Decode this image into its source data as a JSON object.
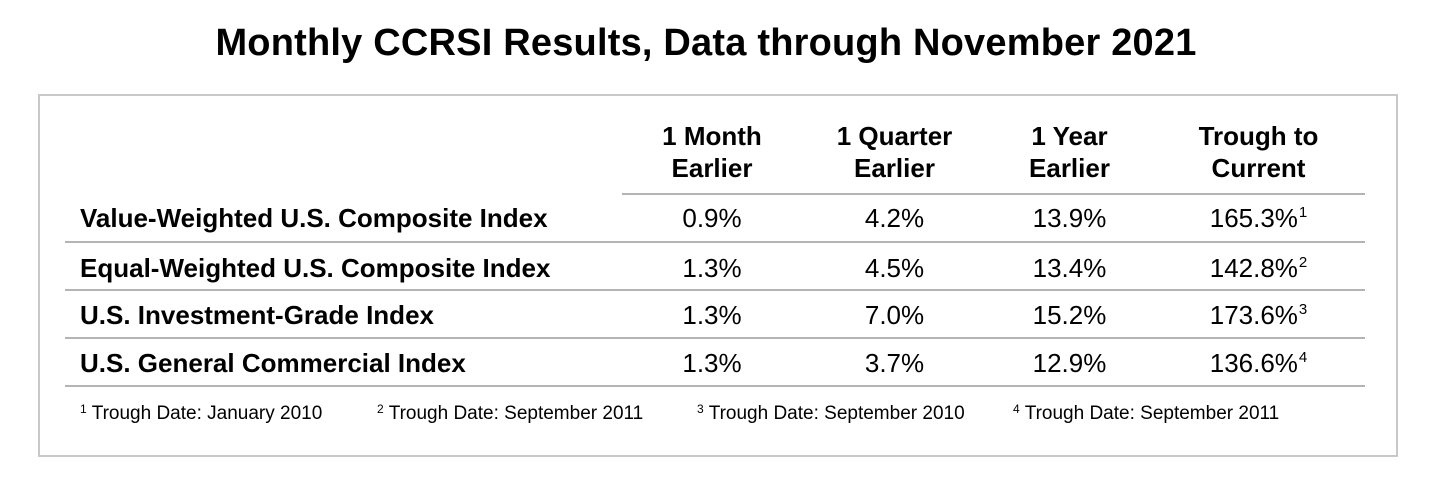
{
  "title": "Monthly CCRSI Results, Data through November 2021",
  "columns": [
    {
      "line1": "1 Month",
      "line2": "Earlier"
    },
    {
      "line1": "1 Quarter",
      "line2": "Earlier"
    },
    {
      "line1": "1 Year",
      "line2": "Earlier"
    },
    {
      "line1": "Trough to",
      "line2": "Current"
    }
  ],
  "rows": [
    {
      "label": "Value-Weighted U.S. Composite Index",
      "month": "0.9%",
      "quarter": "4.2%",
      "year": "13.9%",
      "trough": "165.3%",
      "note_ref": "1"
    },
    {
      "label": "Equal-Weighted U.S. Composite Index",
      "month": "1.3%",
      "quarter": "4.5%",
      "year": "13.4%",
      "trough": "142.8%",
      "note_ref": "2"
    },
    {
      "label": "U.S. Investment-Grade Index",
      "month": "1.3%",
      "quarter": "7.0%",
      "year": "15.2%",
      "trough": "173.6%",
      "note_ref": "3"
    },
    {
      "label": "U.S. General Commercial Index",
      "month": "1.3%",
      "quarter": "3.7%",
      "year": "12.9%",
      "trough": "136.6%",
      "note_ref": "4"
    }
  ],
  "footnotes": [
    {
      "num": "1",
      "text": "Trough Date: January 2010"
    },
    {
      "num": "2",
      "text": "Trough Date: September 2011"
    },
    {
      "num": "3",
      "text": "Trough Date: September 2010"
    },
    {
      "num": "4",
      "text": "Trough Date: September 2011"
    }
  ],
  "colors": {
    "rule": "#b4b4b4",
    "frame": "#c8c8c8",
    "text": "#000000"
  }
}
